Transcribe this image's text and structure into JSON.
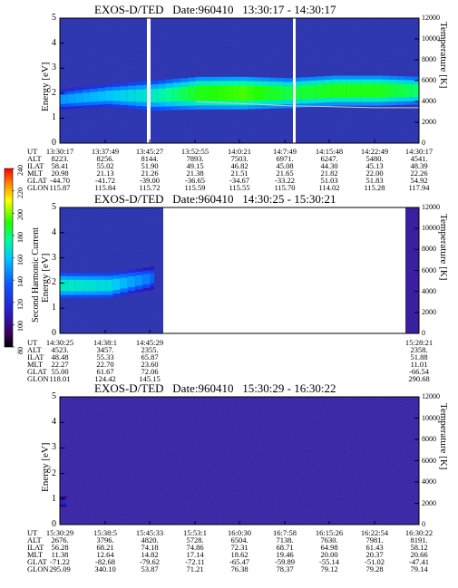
{
  "colorbar": {
    "title": "Second Harmonic Current",
    "ticks": [
      "240",
      "220",
      "200",
      "180",
      "160",
      "140",
      "120",
      "100",
      "80"
    ]
  },
  "panels": [
    {
      "title": "EXOS-D/TED   Date:960410   13:30:17 - 14:30:17",
      "ylabel": "Energy [eV]",
      "y2label": "Temperature [K]",
      "yticks": [
        "0",
        "1",
        "2",
        "3",
        "4",
        "5"
      ],
      "y2ticks": [
        "0",
        "2000",
        "4000",
        "6000",
        "8000",
        "10000",
        "12000"
      ],
      "table": {
        "row_labels": [
          "UT",
          "ALT",
          "ILAT",
          "MLT",
          "GLAT",
          "GLON"
        ],
        "columns": [
          [
            "13:30:17",
            "8223.",
            "58.41",
            "20.98",
            "-44.70",
            "115.87"
          ],
          [
            "13:37:49",
            "8256.",
            "55.02",
            "21.13",
            "-41.72",
            "115.84"
          ],
          [
            "13:45:27",
            "8144.",
            "51.90",
            "21.26",
            "-39.00",
            "115.72"
          ],
          [
            "13:52:55",
            "7893.",
            "49.15",
            "21.38",
            "-36.65",
            "115.59"
          ],
          [
            "14:0:21",
            "7503.",
            "46.82",
            "21.51",
            "-34.67",
            "115.55"
          ],
          [
            "14:7:49",
            "6971.",
            "45.08",
            "21.65",
            "-33.22",
            "115.70"
          ],
          [
            "14:15:48",
            "6247.",
            "44.30",
            "21.82",
            "51.03",
            "114.02"
          ],
          [
            "14:22:49",
            "5480.",
            "45.13",
            "22.00",
            "51.83",
            "115.28"
          ],
          [
            "14:30:17",
            "4541.",
            "48.39",
            "22.26",
            "54.92",
            "117.94"
          ]
        ]
      }
    },
    {
      "title": "EXOS-D/TED   Date:960410   14:30:25 - 15:30:21",
      "ylabel": "Energy [eV]",
      "y2label": "Temperature [K]",
      "yticks": [
        "0",
        "1",
        "2",
        "3",
        "4",
        "5"
      ],
      "y2ticks": [
        "0",
        "2000",
        "4000",
        "6000",
        "8000",
        "10000",
        "12000"
      ],
      "table": {
        "row_labels": [
          "UT",
          "ALT",
          "ILAT",
          "MLT",
          "GLAT",
          "GLON"
        ],
        "columns": [
          [
            "14:30:25",
            "4523.",
            "48.48",
            "22.27",
            "55.00",
            "118.01"
          ],
          [
            "14:38:1",
            "3457.",
            "55.33",
            "22.70",
            "61.67",
            "124.42"
          ],
          [
            "14:45:29",
            "2355.",
            "65.87",
            "23.60",
            "72.06",
            "145.15"
          ],
          [
            "15:28:21",
            "2358.",
            "51.88",
            "11.01",
            "-66.54",
            "290.68"
          ]
        ]
      }
    },
    {
      "title": "EXOS-D/TED   Date:960410   15:30:29 - 16:30:22",
      "ylabel": "Energy [eV]",
      "y2label": "Temperature [K]",
      "yticks": [
        "0",
        "1",
        "2",
        "3",
        "4",
        "5"
      ],
      "y2ticks": [
        "0",
        "2000",
        "4000",
        "6000",
        "8000",
        "10000",
        "12000"
      ],
      "table": {
        "row_labels": [
          "UT",
          "ALT",
          "ILAT",
          "MLT",
          "GLAT",
          "GLON"
        ],
        "columns": [
          [
            "15:30:29",
            "2676.",
            "56.28",
            "11.38",
            "-71.22",
            "295.09"
          ],
          [
            "15:38:5",
            "3796.",
            "68.21",
            "12.64",
            "-82.68",
            "340.10"
          ],
          [
            "15:45:33",
            "4820.",
            "74.18",
            "14.82",
            "-79.62",
            "53.87"
          ],
          [
            "15:53:1",
            "5728.",
            "74.86",
            "17.14",
            "-72.11",
            "71.21"
          ],
          [
            "16:0:30",
            "6504.",
            "72.31",
            "18.62",
            "-65.47",
            "76.38"
          ],
          [
            "16:7:58",
            "7138.",
            "68.71",
            "19.46",
            "-59.89",
            "78.37"
          ],
          [
            "16:15:26",
            "7630.",
            "64.98",
            "20.00",
            "-55.14",
            "79.12"
          ],
          [
            "16:22:54",
            "7981.",
            "61.43",
            "20.37",
            "-51.02",
            "79.28"
          ],
          [
            "16:30:22",
            "8191.",
            "58.12",
            "20.66",
            "-47.41",
            "79.14"
          ]
        ]
      }
    }
  ],
  "chart_data": [
    {
      "type": "heatmap",
      "title": "EXOS-D/TED   Date:960410   13:30:17 - 14:30:17",
      "xlabel": "UT",
      "ylabel": "Energy [eV]",
      "y2label": "Temperature [K]",
      "ylim": [
        0,
        5
      ],
      "y2lim": [
        0,
        12000
      ],
      "clim": [
        80,
        240
      ],
      "data_gaps_ut": [
        [
          "13:45:10",
          "13:45:27"
        ],
        [
          "14:8:10",
          "14:8:30"
        ]
      ],
      "band": [
        {
          "ut": "13:30:17",
          "center": 1.75,
          "width": 0.8,
          "level": 150
        },
        {
          "ut": "13:37:49",
          "center": 1.9,
          "width": 0.9,
          "level": 160
        },
        {
          "ut": "13:45:27",
          "center": 1.9,
          "width": 1.2,
          "level": 170
        },
        {
          "ut": "13:52:55",
          "center": 2.0,
          "width": 1.3,
          "level": 190
        },
        {
          "ut": "14:0:21",
          "center": 2.0,
          "width": 1.3,
          "level": 195
        },
        {
          "ut": "14:7:49",
          "center": 2.0,
          "width": 1.2,
          "level": 185
        },
        {
          "ut": "14:15:48",
          "center": 2.1,
          "width": 1.2,
          "level": 190
        },
        {
          "ut": "14:22:49",
          "center": 2.1,
          "width": 1.2,
          "level": 190
        },
        {
          "ut": "14:30:17",
          "center": 2.1,
          "width": 1.1,
          "level": 180
        }
      ],
      "temperature": [
        {
          "ut": "13:52:55",
          "value": 4000
        },
        {
          "ut": "14:0:21",
          "value": 3800
        },
        {
          "ut": "14:7:49",
          "value": 3600
        },
        {
          "ut": "14:15:48",
          "value": 3500
        },
        {
          "ut": "14:22:49",
          "value": 3400
        },
        {
          "ut": "14:30:17",
          "value": 3400
        }
      ]
    },
    {
      "type": "heatmap",
      "title": "EXOS-D/TED   Date:960410   14:30:25 - 15:30:21",
      "xlabel": "UT",
      "ylabel": "Energy [eV]",
      "y2label": "Temperature [K]",
      "ylim": [
        0,
        5
      ],
      "y2lim": [
        0,
        12000
      ],
      "clim": [
        80,
        240
      ],
      "no_data_ut": [
        [
          "14:48:00",
          "15:27:00"
        ]
      ],
      "band": [
        {
          "ut": "14:30:25",
          "center": 1.9,
          "width": 1.0,
          "level": 170
        },
        {
          "ut": "14:38:1",
          "center": 1.9,
          "width": 1.0,
          "level": 165
        },
        {
          "ut": "14:45:29",
          "center": 2.2,
          "width": 0.9,
          "level": 140
        }
      ]
    },
    {
      "type": "heatmap",
      "title": "EXOS-D/TED   Date:960410   15:30:29 - 16:30:22",
      "xlabel": "UT",
      "ylabel": "Energy [eV]",
      "y2label": "Temperature [K]",
      "ylim": [
        0,
        5
      ],
      "y2lim": [
        0,
        12000
      ],
      "clim": [
        80,
        240
      ],
      "band": [
        {
          "ut": "15:30:29",
          "center": 0.9,
          "width": 0.4,
          "level": 120
        }
      ]
    }
  ]
}
